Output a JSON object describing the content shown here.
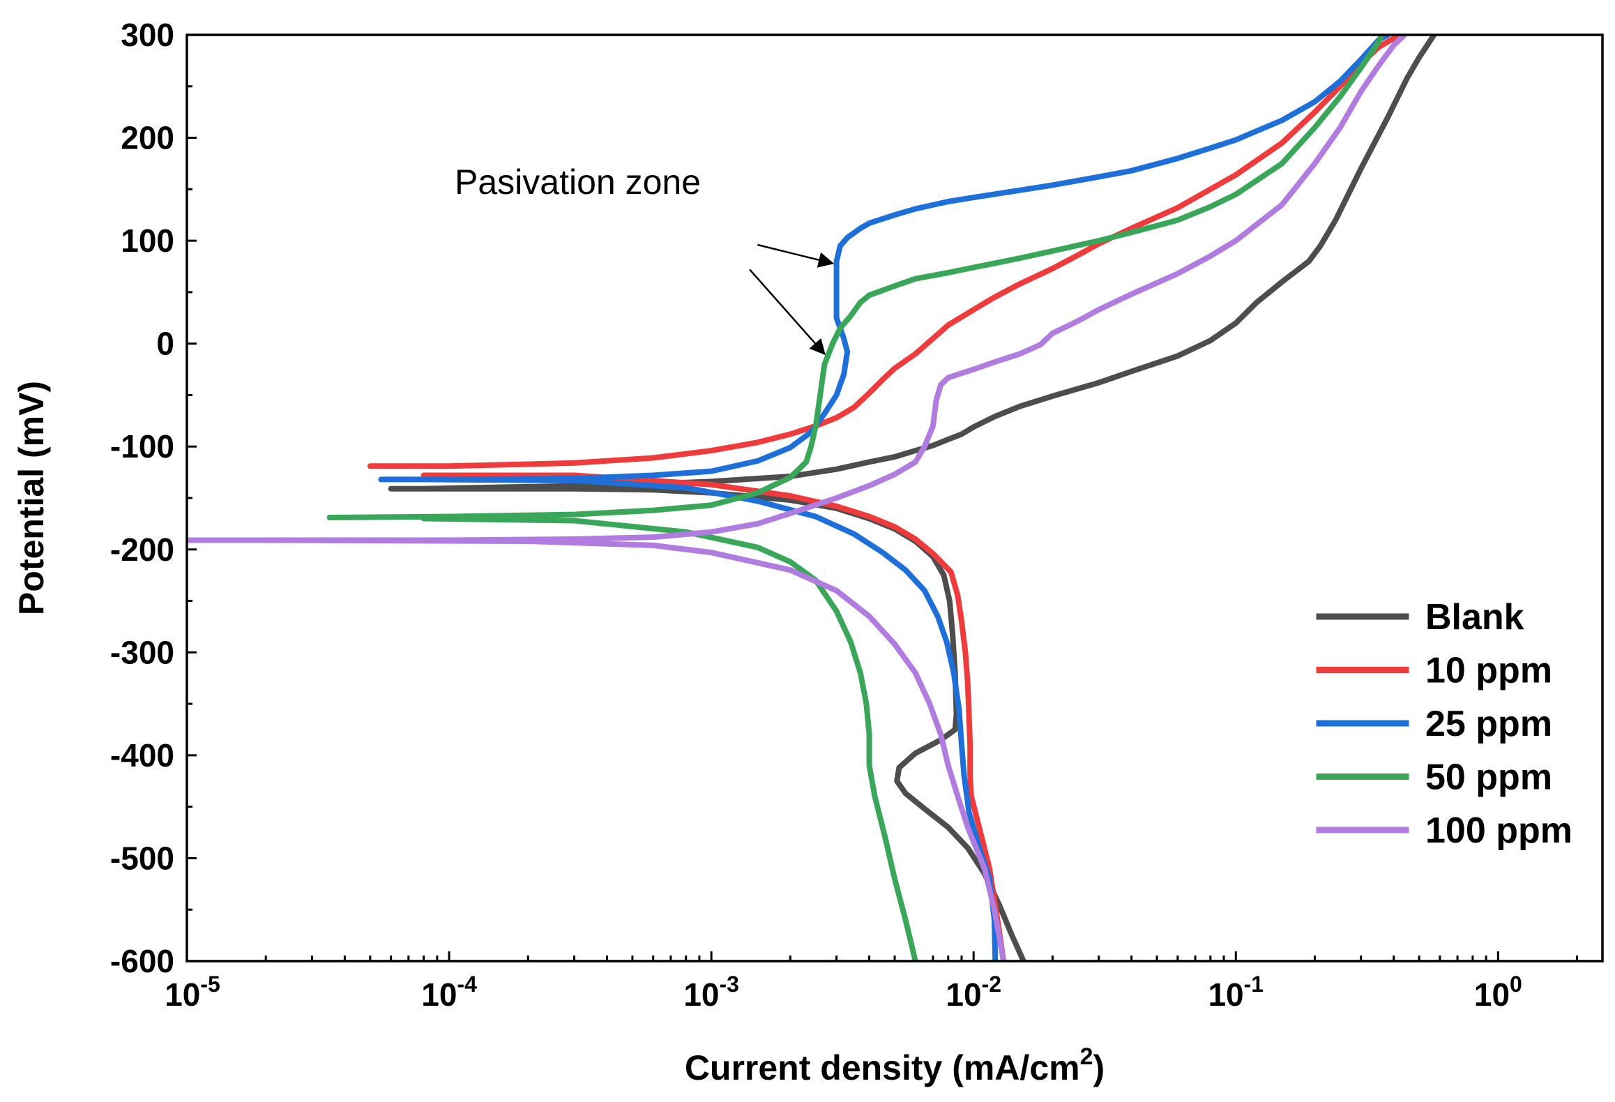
{
  "chart_data": {
    "type": "line",
    "xlabel": "Current density (mA/cm",
    "xlabel_sup": "2",
    "xlabel_end": ")",
    "ylabel": "Potential (mV)",
    "xscale": "log",
    "xlim": [
      1e-05,
      2.5
    ],
    "ylim": [
      -600,
      300
    ],
    "x_ticks": [
      {
        "value": 1e-05,
        "base": "10",
        "exp": "-5"
      },
      {
        "value": 0.0001,
        "base": "10",
        "exp": "-4"
      },
      {
        "value": 0.001,
        "base": "10",
        "exp": "-3"
      },
      {
        "value": 0.01,
        "base": "10",
        "exp": "-2"
      },
      {
        "value": 0.1,
        "base": "10",
        "exp": "-1"
      },
      {
        "value": 1,
        "base": "10",
        "exp": "0"
      }
    ],
    "y_ticks": [
      {
        "value": 300,
        "label": "300"
      },
      {
        "value": 200,
        "label": "200"
      },
      {
        "value": 100,
        "label": "100"
      },
      {
        "value": 0,
        "label": "0"
      },
      {
        "value": -100,
        "label": "-100"
      },
      {
        "value": -200,
        "label": "-200"
      },
      {
        "value": -300,
        "label": "-300"
      },
      {
        "value": -400,
        "label": "-400"
      },
      {
        "value": -500,
        "label": "-500"
      },
      {
        "value": -600,
        "label": "-600"
      }
    ],
    "grid": false,
    "legend_position": "bottom-right",
    "annotation": {
      "text": "Pasivation zone",
      "arrows": [
        {
          "from": [
            0.0015,
            96
          ],
          "to": [
            0.0029,
            78
          ]
        },
        {
          "from": [
            0.0014,
            72
          ],
          "to": [
            0.0027,
            -10
          ]
        }
      ]
    },
    "series": [
      {
        "name": "Blank",
        "color": "#4d4d4d",
        "points": [
          [
            6e-05,
            -141
          ],
          [
            0.0001,
            -141
          ],
          [
            0.0003,
            -141
          ],
          [
            0.0006,
            -142
          ],
          [
            0.001,
            -145
          ],
          [
            0.002,
            -152
          ],
          [
            0.003,
            -160
          ],
          [
            0.004,
            -170
          ],
          [
            0.005,
            -180
          ],
          [
            0.006,
            -192
          ],
          [
            0.007,
            -207
          ],
          [
            0.0077,
            -225
          ],
          [
            0.0081,
            -250
          ],
          [
            0.0083,
            -280
          ],
          [
            0.0085,
            -320
          ],
          [
            0.0086,
            -360
          ],
          [
            0.0085,
            -375
          ],
          [
            0.0075,
            -385
          ],
          [
            0.006,
            -398
          ],
          [
            0.0052,
            -412
          ],
          [
            0.0051,
            -425
          ],
          [
            0.0055,
            -437
          ],
          [
            0.0065,
            -452
          ],
          [
            0.008,
            -470
          ],
          [
            0.0095,
            -490
          ],
          [
            0.011,
            -515
          ],
          [
            0.0125,
            -545
          ],
          [
            0.014,
            -575
          ],
          [
            0.0155,
            -600
          ],
          null,
          [
            8e-05,
            -141
          ],
          [
            0.0002,
            -139
          ],
          [
            0.0005,
            -137
          ],
          [
            0.001,
            -134
          ],
          [
            0.002,
            -129
          ],
          [
            0.003,
            -122
          ],
          [
            0.004,
            -115
          ],
          [
            0.005,
            -110
          ],
          [
            0.006,
            -104
          ],
          [
            0.007,
            -99
          ],
          [
            0.008,
            -93
          ],
          [
            0.009,
            -88
          ],
          [
            0.01,
            -81
          ],
          [
            0.012,
            -71
          ],
          [
            0.015,
            -61
          ],
          [
            0.02,
            -51
          ],
          [
            0.03,
            -38
          ],
          [
            0.04,
            -27
          ],
          [
            0.06,
            -12
          ],
          [
            0.08,
            3
          ],
          [
            0.1,
            20
          ],
          [
            0.12,
            40
          ],
          [
            0.15,
            60
          ],
          [
            0.19,
            80
          ],
          [
            0.21,
            95
          ],
          [
            0.24,
            120
          ],
          [
            0.3,
            170
          ],
          [
            0.38,
            220
          ],
          [
            0.45,
            258
          ],
          [
            0.5,
            278
          ],
          [
            0.57,
            300
          ]
        ]
      },
      {
        "name": "10 ppm",
        "color": "#ee3b3b",
        "points": [
          [
            5e-05,
            -119
          ],
          [
            0.0001,
            -119
          ],
          [
            0.0003,
            -116
          ],
          [
            0.0006,
            -111
          ],
          [
            0.001,
            -104
          ],
          [
            0.0015,
            -96
          ],
          [
            0.002,
            -88
          ],
          [
            0.0025,
            -80
          ],
          [
            0.003,
            -72
          ],
          [
            0.0035,
            -62
          ],
          [
            0.004,
            -48
          ],
          [
            0.0045,
            -35
          ],
          [
            0.005,
            -24
          ],
          [
            0.006,
            -10
          ],
          [
            0.007,
            5
          ],
          [
            0.008,
            18
          ],
          [
            0.01,
            33
          ],
          [
            0.012,
            45
          ],
          [
            0.015,
            58
          ],
          [
            0.02,
            73
          ],
          [
            0.025,
            86
          ],
          [
            0.03,
            97
          ],
          [
            0.04,
            112
          ],
          [
            0.06,
            132
          ],
          [
            0.08,
            150
          ],
          [
            0.1,
            164
          ],
          [
            0.15,
            195
          ],
          [
            0.2,
            225
          ],
          [
            0.25,
            250
          ],
          [
            0.3,
            272
          ],
          [
            0.35,
            288
          ],
          [
            0.42,
            300
          ],
          null,
          [
            8e-05,
            -128
          ],
          [
            0.0003,
            -128
          ],
          [
            0.001,
            -137
          ],
          [
            0.002,
            -148
          ],
          [
            0.003,
            -158
          ],
          [
            0.004,
            -168
          ],
          [
            0.005,
            -178
          ],
          [
            0.006,
            -190
          ],
          [
            0.007,
            -204
          ],
          [
            0.0082,
            -222
          ],
          [
            0.0087,
            -245
          ],
          [
            0.009,
            -270
          ],
          [
            0.0093,
            -300
          ],
          [
            0.0095,
            -330
          ],
          [
            0.0096,
            -360
          ],
          [
            0.0097,
            -390
          ],
          [
            0.0097,
            -420
          ],
          [
            0.0098,
            -440
          ],
          [
            0.0105,
            -470
          ],
          [
            0.0115,
            -510
          ],
          [
            0.012,
            -540
          ],
          [
            0.0125,
            -570
          ],
          [
            0.013,
            -600
          ]
        ]
      },
      {
        "name": "25 ppm",
        "color": "#1f6fd8",
        "points": [
          [
            5.5e-05,
            -132
          ],
          [
            0.0001,
            -132
          ],
          [
            0.0003,
            -131
          ],
          [
            0.0006,
            -128
          ],
          [
            0.001,
            -124
          ],
          [
            0.0015,
            -114
          ],
          [
            0.002,
            -101
          ],
          [
            0.0024,
            -86
          ],
          [
            0.0027,
            -68
          ],
          [
            0.003,
            -50
          ],
          [
            0.0032,
            -30
          ],
          [
            0.0033,
            -8
          ],
          [
            0.0032,
            5
          ],
          [
            0.003,
            25
          ],
          [
            0.003,
            50
          ],
          [
            0.003,
            80
          ],
          [
            0.0031,
            95
          ],
          [
            0.0033,
            103
          ],
          [
            0.0037,
            112
          ],
          [
            0.004,
            117
          ],
          [
            0.005,
            125
          ],
          [
            0.006,
            131
          ],
          [
            0.008,
            138
          ],
          [
            0.01,
            142
          ],
          [
            0.015,
            149
          ],
          [
            0.02,
            154
          ],
          [
            0.03,
            162
          ],
          [
            0.04,
            168
          ],
          [
            0.06,
            180
          ],
          [
            0.08,
            190
          ],
          [
            0.1,
            198
          ],
          [
            0.15,
            217
          ],
          [
            0.2,
            235
          ],
          [
            0.25,
            255
          ],
          [
            0.3,
            276
          ],
          [
            0.35,
            295
          ],
          [
            0.38,
            300
          ],
          null,
          [
            8e-05,
            -132
          ],
          [
            0.0003,
            -133
          ],
          [
            0.0008,
            -140
          ],
          [
            0.0015,
            -153
          ],
          [
            0.0025,
            -168
          ],
          [
            0.0035,
            -185
          ],
          [
            0.0045,
            -203
          ],
          [
            0.0055,
            -220
          ],
          [
            0.0065,
            -240
          ],
          [
            0.0073,
            -265
          ],
          [
            0.0079,
            -290
          ],
          [
            0.0084,
            -320
          ],
          [
            0.0088,
            -355
          ],
          [
            0.009,
            -390
          ],
          [
            0.0092,
            -420
          ],
          [
            0.0096,
            -455
          ],
          [
            0.0105,
            -490
          ],
          [
            0.0115,
            -520
          ],
          [
            0.012,
            -560
          ],
          [
            0.0121,
            -600
          ]
        ]
      },
      {
        "name": "50 ppm",
        "color": "#3aa65a",
        "points": [
          [
            3.5e-05,
            -169
          ],
          [
            0.0001,
            -168
          ],
          [
            0.0003,
            -166
          ],
          [
            0.0006,
            -162
          ],
          [
            0.001,
            -157
          ],
          [
            0.0015,
            -145
          ],
          [
            0.002,
            -130
          ],
          [
            0.0023,
            -115
          ],
          [
            0.0024,
            -100
          ],
          [
            0.0025,
            -80
          ],
          [
            0.0026,
            -50
          ],
          [
            0.0027,
            -20
          ],
          [
            0.0029,
            0
          ],
          [
            0.0031,
            15
          ],
          [
            0.0034,
            27
          ],
          [
            0.0037,
            40
          ],
          [
            0.004,
            47
          ],
          [
            0.005,
            56
          ],
          [
            0.006,
            63
          ],
          [
            0.008,
            69
          ],
          [
            0.01,
            74
          ],
          [
            0.012,
            78
          ],
          [
            0.015,
            83
          ],
          [
            0.02,
            90
          ],
          [
            0.03,
            100
          ],
          [
            0.04,
            108
          ],
          [
            0.06,
            120
          ],
          [
            0.08,
            133
          ],
          [
            0.1,
            145
          ],
          [
            0.15,
            175
          ],
          [
            0.2,
            210
          ],
          [
            0.25,
            240
          ],
          [
            0.3,
            268
          ],
          [
            0.35,
            293
          ],
          [
            0.36,
            300
          ],
          null,
          [
            8e-05,
            -170
          ],
          [
            0.0003,
            -172
          ],
          [
            0.0008,
            -183
          ],
          [
            0.0015,
            -198
          ],
          [
            0.002,
            -212
          ],
          [
            0.0025,
            -230
          ],
          [
            0.003,
            -260
          ],
          [
            0.0034,
            -290
          ],
          [
            0.0037,
            -320
          ],
          [
            0.0039,
            -350
          ],
          [
            0.004,
            -380
          ],
          [
            0.004,
            -410
          ],
          [
            0.0042,
            -440
          ],
          [
            0.0046,
            -480
          ],
          [
            0.005,
            -520
          ],
          [
            0.0055,
            -560
          ],
          [
            0.006,
            -600
          ]
        ]
      },
      {
        "name": "100 ppm",
        "color": "#b07ce0",
        "points": [
          [
            1e-05,
            -191
          ],
          [
            0.0001,
            -191
          ],
          [
            0.0003,
            -190
          ],
          [
            0.0006,
            -188
          ],
          [
            0.001,
            -183
          ],
          [
            0.0015,
            -175
          ],
          [
            0.002,
            -165
          ],
          [
            0.003,
            -150
          ],
          [
            0.004,
            -138
          ],
          [
            0.005,
            -127
          ],
          [
            0.006,
            -115
          ],
          [
            0.0065,
            -100
          ],
          [
            0.007,
            -80
          ],
          [
            0.0072,
            -55
          ],
          [
            0.0075,
            -40
          ],
          [
            0.008,
            -33
          ],
          [
            0.01,
            -25
          ],
          [
            0.012,
            -18
          ],
          [
            0.015,
            -10
          ],
          [
            0.018,
            -1
          ],
          [
            0.02,
            10
          ],
          [
            0.025,
            22
          ],
          [
            0.03,
            33
          ],
          [
            0.04,
            48
          ],
          [
            0.06,
            68
          ],
          [
            0.08,
            85
          ],
          [
            0.1,
            100
          ],
          [
            0.15,
            135
          ],
          [
            0.2,
            175
          ],
          [
            0.25,
            210
          ],
          [
            0.3,
            245
          ],
          [
            0.35,
            270
          ],
          [
            0.4,
            290
          ],
          [
            0.44,
            300
          ],
          null,
          [
            2e-05,
            -191
          ],
          [
            0.0002,
            -192
          ],
          [
            0.0006,
            -196
          ],
          [
            0.001,
            -203
          ],
          [
            0.002,
            -220
          ],
          [
            0.003,
            -240
          ],
          [
            0.004,
            -265
          ],
          [
            0.005,
            -292
          ],
          [
            0.006,
            -320
          ],
          [
            0.0068,
            -350
          ],
          [
            0.0075,
            -380
          ],
          [
            0.008,
            -410
          ],
          [
            0.0087,
            -440
          ],
          [
            0.0095,
            -470
          ],
          [
            0.011,
            -510
          ],
          [
            0.012,
            -550
          ],
          [
            0.013,
            -600
          ]
        ]
      }
    ]
  }
}
